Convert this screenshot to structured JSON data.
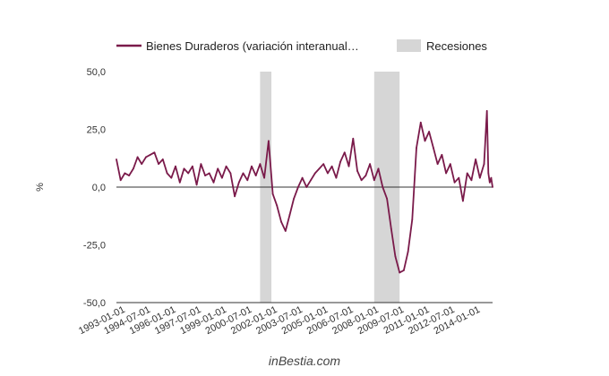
{
  "chart_data": {
    "type": "line",
    "title": "",
    "xlabel": "",
    "ylabel": "%",
    "ylim": [
      -50,
      50
    ],
    "yticks": [
      50,
      25,
      0,
      -25,
      -50
    ],
    "ytick_labels": [
      "50,0",
      "25,0",
      "0,0",
      "-25,0",
      "-50,0"
    ],
    "xlim": [
      "1992-09-01",
      "2014-12-01"
    ],
    "xticks": [
      "1993-01-01",
      "1994-07-01",
      "1996-01-01",
      "1997-07-01",
      "1999-01-01",
      "2000-07-01",
      "2002-01-01",
      "2003-07-01",
      "2005-01-01",
      "2006-07-01",
      "2008-01-01",
      "2009-07-01",
      "2011-01-01",
      "2012-07-01",
      "2014-01-01"
    ],
    "legend": {
      "position": "top",
      "series_label": "Bienes Duraderos (variación interanual…",
      "recession_label": "Recesiones"
    },
    "recessions": [
      {
        "start": "2001-03-01",
        "end": "2001-11-01"
      },
      {
        "start": "2007-12-01",
        "end": "2009-06-01"
      }
    ],
    "series": [
      {
        "name": "Bienes Duraderos (variación interanual…",
        "color": "#7a1a4a",
        "points": [
          [
            "1992-09-01",
            12
          ],
          [
            "1992-12-01",
            3
          ],
          [
            "1993-03-01",
            6
          ],
          [
            "1993-06-01",
            5
          ],
          [
            "1993-09-01",
            8
          ],
          [
            "1993-12-01",
            13
          ],
          [
            "1994-03-01",
            10
          ],
          [
            "1994-06-01",
            13
          ],
          [
            "1994-09-01",
            14
          ],
          [
            "1994-12-01",
            15
          ],
          [
            "1995-03-01",
            10
          ],
          [
            "1995-06-01",
            12
          ],
          [
            "1995-09-01",
            6
          ],
          [
            "1995-12-01",
            4
          ],
          [
            "1996-03-01",
            9
          ],
          [
            "1996-06-01",
            2
          ],
          [
            "1996-09-01",
            8
          ],
          [
            "1996-12-01",
            6
          ],
          [
            "1997-03-01",
            9
          ],
          [
            "1997-06-01",
            1
          ],
          [
            "1997-09-01",
            10
          ],
          [
            "1997-12-01",
            5
          ],
          [
            "1998-03-01",
            6
          ],
          [
            "1998-06-01",
            2
          ],
          [
            "1998-09-01",
            8
          ],
          [
            "1998-12-01",
            4
          ],
          [
            "1999-03-01",
            9
          ],
          [
            "1999-06-01",
            6
          ],
          [
            "1999-09-01",
            -4
          ],
          [
            "1999-12-01",
            2
          ],
          [
            "2000-03-01",
            6
          ],
          [
            "2000-06-01",
            3
          ],
          [
            "2000-09-01",
            9
          ],
          [
            "2000-12-01",
            5
          ],
          [
            "2001-03-01",
            10
          ],
          [
            "2001-06-01",
            4
          ],
          [
            "2001-09-01",
            20
          ],
          [
            "2001-12-01",
            -3
          ],
          [
            "2002-03-01",
            -8
          ],
          [
            "2002-06-01",
            -15
          ],
          [
            "2002-09-01",
            -19
          ],
          [
            "2002-12-01",
            -12
          ],
          [
            "2003-03-01",
            -5
          ],
          [
            "2003-06-01",
            0
          ],
          [
            "2003-09-01",
            4
          ],
          [
            "2003-12-01",
            0
          ],
          [
            "2004-03-01",
            3
          ],
          [
            "2004-06-01",
            6
          ],
          [
            "2004-09-01",
            8
          ],
          [
            "2004-12-01",
            10
          ],
          [
            "2005-03-01",
            6
          ],
          [
            "2005-06-01",
            9
          ],
          [
            "2005-09-01",
            4
          ],
          [
            "2005-12-01",
            11
          ],
          [
            "2006-03-01",
            15
          ],
          [
            "2006-06-01",
            9
          ],
          [
            "2006-09-01",
            21
          ],
          [
            "2006-12-01",
            7
          ],
          [
            "2007-03-01",
            3
          ],
          [
            "2007-06-01",
            5
          ],
          [
            "2007-09-01",
            10
          ],
          [
            "2007-12-01",
            3
          ],
          [
            "2008-03-01",
            8
          ],
          [
            "2008-06-01",
            0
          ],
          [
            "2008-09-01",
            -5
          ],
          [
            "2008-12-01",
            -18
          ],
          [
            "2009-03-01",
            -30
          ],
          [
            "2009-06-01",
            -37
          ],
          [
            "2009-09-01",
            -36
          ],
          [
            "2009-12-01",
            -28
          ],
          [
            "2010-03-01",
            -14
          ],
          [
            "2010-06-01",
            17
          ],
          [
            "2010-09-01",
            28
          ],
          [
            "2010-12-01",
            20
          ],
          [
            "2011-03-01",
            24
          ],
          [
            "2011-06-01",
            17
          ],
          [
            "2011-09-01",
            10
          ],
          [
            "2011-12-01",
            14
          ],
          [
            "2012-03-01",
            6
          ],
          [
            "2012-06-01",
            10
          ],
          [
            "2012-09-01",
            2
          ],
          [
            "2012-12-01",
            4
          ],
          [
            "2013-03-01",
            -6
          ],
          [
            "2013-06-01",
            6
          ],
          [
            "2013-09-01",
            3
          ],
          [
            "2013-12-01",
            12
          ],
          [
            "2014-03-01",
            4
          ],
          [
            "2014-06-01",
            10
          ],
          [
            "2014-08-01",
            33
          ],
          [
            "2014-09-01",
            6
          ],
          [
            "2014-10-01",
            2
          ],
          [
            "2014-11-01",
            4
          ],
          [
            "2014-12-01",
            0
          ]
        ]
      }
    ],
    "grid": false,
    "zero_line": true,
    "recession_color": "#d6d6d6",
    "source": "inBestia.com"
  }
}
